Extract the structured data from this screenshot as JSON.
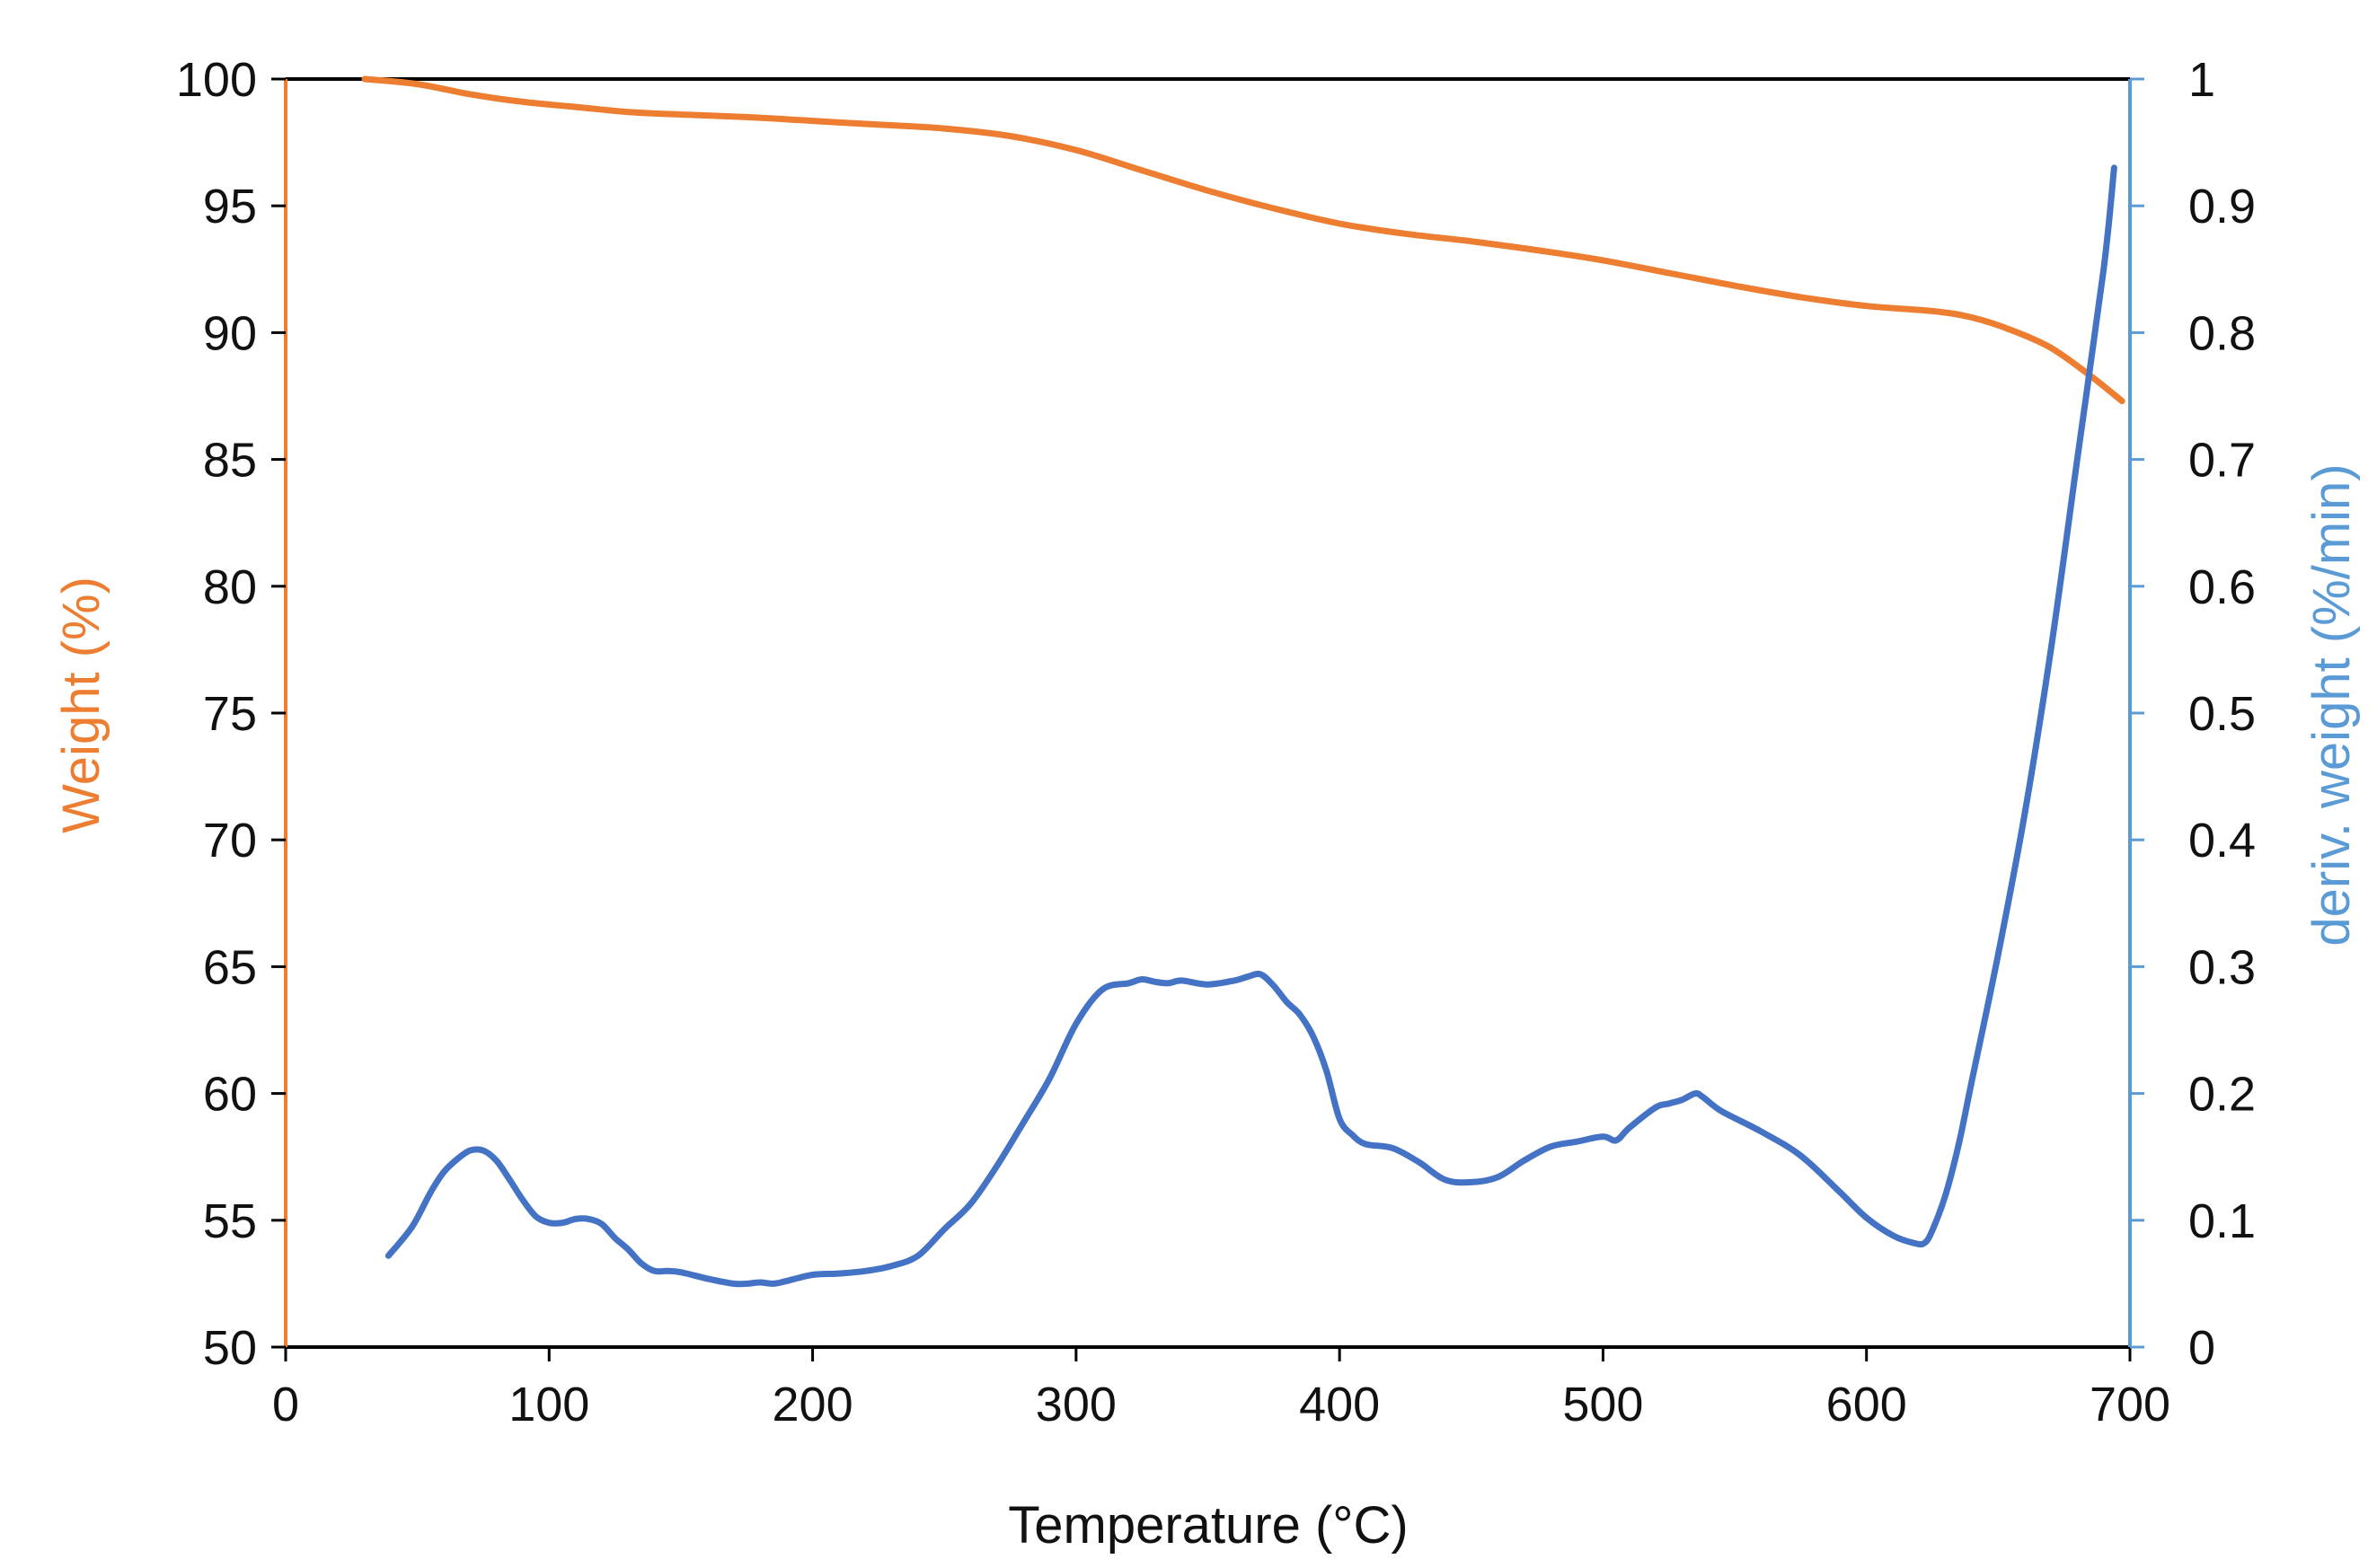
{
  "chart_data": {
    "type": "line",
    "title": "",
    "xlabel": "Temperature (°C)",
    "ylabel_left": "Weight (%)",
    "ylabel_right": "deriv. weight (%/min)",
    "xlim": [
      0,
      700
    ],
    "ylim_left": [
      50,
      100
    ],
    "ylim_right": [
      0,
      1
    ],
    "x_ticks": [
      "0",
      "100",
      "200",
      "300",
      "400",
      "500",
      "600",
      "700"
    ],
    "y_left_ticks": [
      "50",
      "55",
      "60",
      "65",
      "70",
      "75",
      "80",
      "85",
      "90",
      "95",
      "100"
    ],
    "y_right_ticks": [
      "0",
      "0.1",
      "0.2",
      "0.3",
      "0.4",
      "0.5",
      "0.6",
      "0.7",
      "0.8",
      "0.9",
      "1"
    ],
    "grid": false,
    "colors": {
      "weight": "#ed7d31",
      "deriv": "#4472c4",
      "deriv_axis": "#5b9bd5",
      "axis": "#000000"
    },
    "series": [
      {
        "name": "Weight",
        "axis": "left",
        "color": "#ed7d31",
        "x": [
          30,
          50,
          70,
          90,
          110,
          130,
          150,
          175,
          200,
          225,
          250,
          275,
          300,
          325,
          350,
          375,
          400,
          425,
          450,
          475,
          500,
          525,
          550,
          575,
          600,
          625,
          640,
          655,
          670,
          685,
          697
        ],
        "y": [
          100,
          99.8,
          99.4,
          99.1,
          98.9,
          98.7,
          98.6,
          98.5,
          98.35,
          98.2,
          98.05,
          97.75,
          97.2,
          96.4,
          95.6,
          94.9,
          94.3,
          93.9,
          93.6,
          93.25,
          92.85,
          92.35,
          91.85,
          91.4,
          91.05,
          90.85,
          90.6,
          90.1,
          89.4,
          88.3,
          87.3
        ]
      },
      {
        "name": "Deriv. weight",
        "axis": "right",
        "color": "#4472c4",
        "x": [
          39,
          48,
          55,
          60,
          65,
          70,
          75,
          80,
          85,
          90,
          95,
          100,
          105,
          110,
          115,
          120,
          125,
          130,
          135,
          140,
          145,
          150,
          160,
          170,
          175,
          180,
          185,
          190,
          200,
          210,
          220,
          230,
          240,
          250,
          260,
          270,
          280,
          290,
          300,
          310,
          320,
          325,
          330,
          335,
          340,
          350,
          360,
          365,
          370,
          375,
          380,
          385,
          390,
          395,
          400,
          405,
          410,
          420,
          430,
          440,
          450,
          460,
          470,
          480,
          490,
          500,
          505,
          510,
          520,
          525,
          530,
          535,
          538,
          545,
          560,
          575,
          590,
          600,
          610,
          618,
          622,
          625,
          630,
          635,
          640,
          650,
          660,
          670,
          680,
          690,
          694
        ],
        "y": [
          0.072,
          0.095,
          0.122,
          0.138,
          0.148,
          0.155,
          0.155,
          0.147,
          0.132,
          0.116,
          0.103,
          0.098,
          0.098,
          0.101,
          0.101,
          0.097,
          0.086,
          0.077,
          0.066,
          0.06,
          0.06,
          0.059,
          0.054,
          0.05,
          0.05,
          0.051,
          0.05,
          0.052,
          0.057,
          0.058,
          0.06,
          0.064,
          0.072,
          0.093,
          0.113,
          0.143,
          0.177,
          0.212,
          0.255,
          0.282,
          0.287,
          0.29,
          0.288,
          0.287,
          0.289,
          0.286,
          0.289,
          0.292,
          0.294,
          0.285,
          0.272,
          0.262,
          0.245,
          0.218,
          0.18,
          0.167,
          0.16,
          0.157,
          0.146,
          0.132,
          0.13,
          0.134,
          0.147,
          0.158,
          0.162,
          0.166,
          0.163,
          0.173,
          0.189,
          0.192,
          0.195,
          0.2,
          0.197,
          0.186,
          0.17,
          0.151,
          0.122,
          0.102,
          0.088,
          0.082,
          0.082,
          0.092,
          0.12,
          0.16,
          0.21,
          0.31,
          0.42,
          0.55,
          0.7,
          0.85,
          0.93
        ]
      }
    ]
  }
}
